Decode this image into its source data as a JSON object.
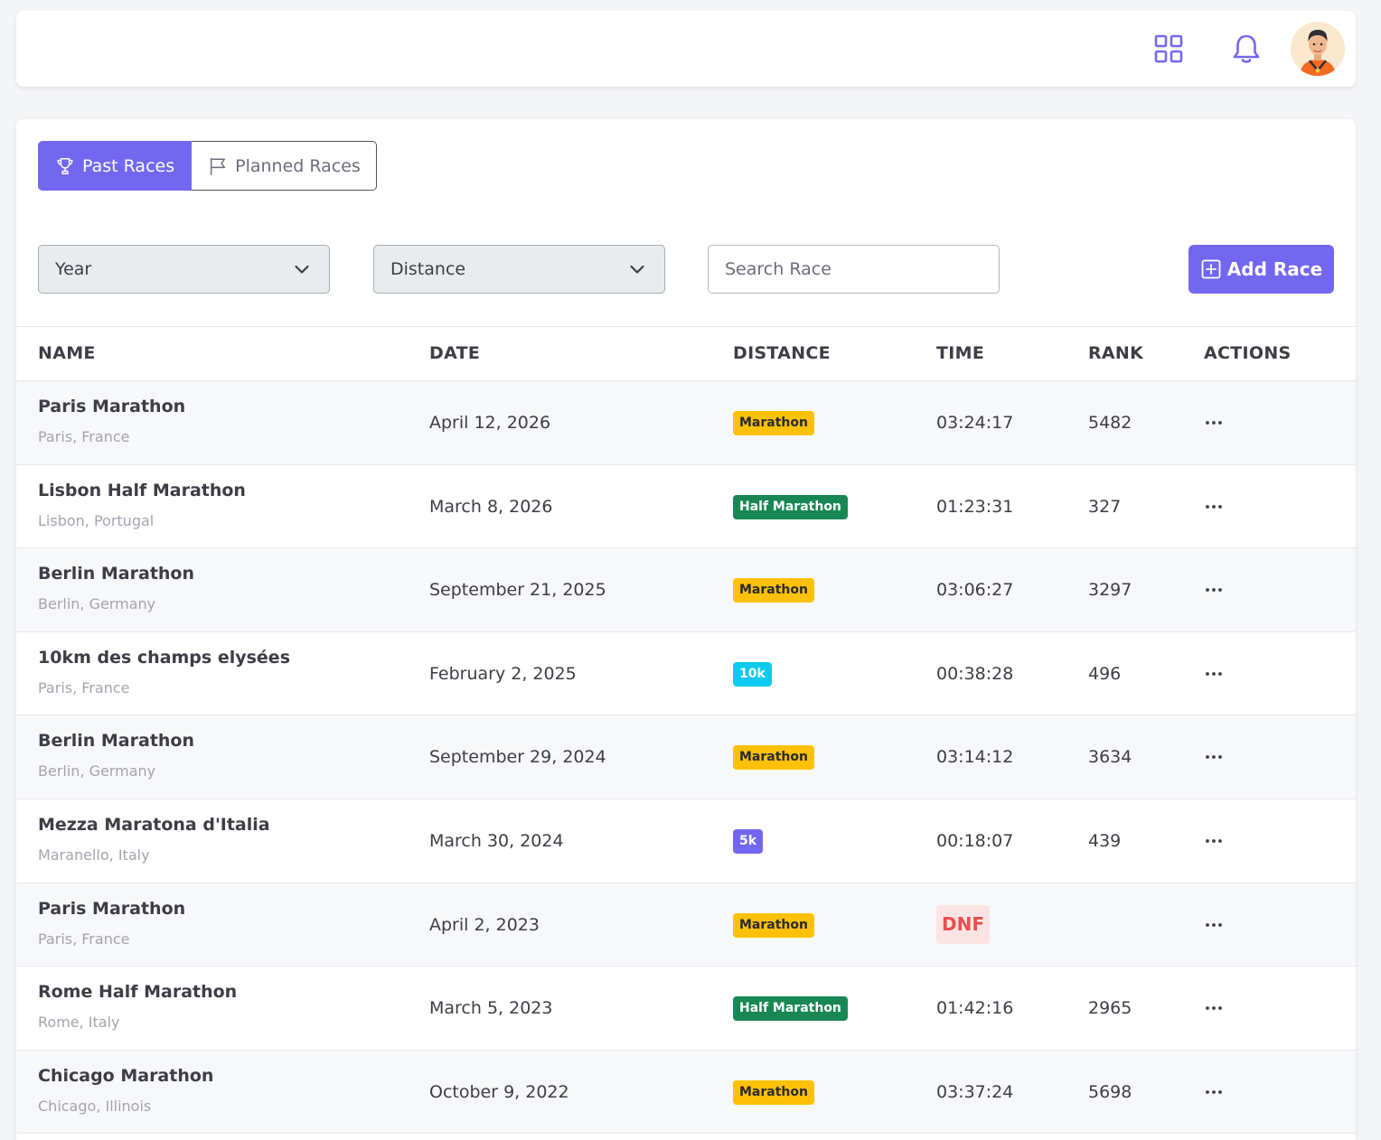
{
  "header": {
    "apps_icon": "grid-icon",
    "notifications_icon": "bell-icon",
    "avatar": "user-avatar"
  },
  "tabs": [
    {
      "label": "Past Races",
      "icon": "trophy-icon",
      "active": true
    },
    {
      "label": "Planned Races",
      "icon": "flag-icon",
      "active": false
    }
  ],
  "filters": {
    "year": {
      "selected": "Year",
      "icon": "chevron-down-icon"
    },
    "distance": {
      "selected": "Distance",
      "icon": "chevron-down-icon"
    },
    "search": {
      "placeholder": "Search Race",
      "value": ""
    },
    "add_button": {
      "label": "Add Race",
      "icon": "plus-square-icon"
    }
  },
  "table": {
    "columns": [
      "NAME",
      "DATE",
      "DISTANCE",
      "TIME",
      "RANK",
      "ACTIONS"
    ],
    "rows": [
      {
        "name": "Paris Marathon",
        "location": "Paris, France",
        "date": "April 12, 2026",
        "distance": "Marathon",
        "badge_type": "marathon",
        "time": "03:24:17",
        "rank": "5482"
      },
      {
        "name": "Lisbon Half Marathon",
        "location": "Lisbon, Portugal",
        "date": "March 8, 2026",
        "distance": "Half Marathon",
        "badge_type": "half",
        "time": "01:23:31",
        "rank": "327"
      },
      {
        "name": "Berlin Marathon",
        "location": "Berlin, Germany",
        "date": "September 21, 2025",
        "distance": "Marathon",
        "badge_type": "marathon",
        "time": "03:06:27",
        "rank": "3297"
      },
      {
        "name": "10km des champs elysées",
        "location": "Paris, France",
        "date": "February 2, 2025",
        "distance": "10k",
        "badge_type": "10k",
        "time": "00:38:28",
        "rank": "496"
      },
      {
        "name": "Berlin Marathon",
        "location": "Berlin, Germany",
        "date": "September 29, 2024",
        "distance": "Marathon",
        "badge_type": "marathon",
        "time": "03:14:12",
        "rank": "3634"
      },
      {
        "name": "Mezza Maratona d'Italia",
        "location": "Maranello, Italy",
        "date": "March 30, 2024",
        "distance": "5k",
        "badge_type": "5k",
        "time": "00:18:07",
        "rank": "439"
      },
      {
        "name": "Paris Marathon",
        "location": "Paris, France",
        "date": "April 2, 2023",
        "distance": "Marathon",
        "badge_type": "marathon",
        "time": "DNF",
        "dnf": true,
        "rank": ""
      },
      {
        "name": "Rome Half Marathon",
        "location": "Rome, Italy",
        "date": "March 5, 2023",
        "distance": "Half Marathon",
        "badge_type": "half",
        "time": "01:42:16",
        "rank": "2965"
      },
      {
        "name": "Chicago Marathon",
        "location": "Chicago, Illinois",
        "date": "October 9, 2022",
        "distance": "Marathon",
        "badge_type": "marathon",
        "time": "03:37:24",
        "rank": "5698"
      }
    ],
    "row_action_icon": "more-horizontal-icon"
  },
  "colors": {
    "primary": "#7367f0",
    "marathon": "#ffc107",
    "half_marathon": "#198754",
    "tenk": "#0dcaf0",
    "fivek": "#7367f0",
    "dnf_text": "#ea4e4e",
    "dnf_bg": "#fce4e4"
  }
}
